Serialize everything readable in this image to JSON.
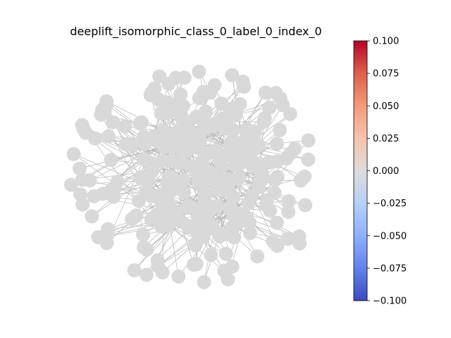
{
  "chart_data": {
    "type": "network",
    "title": "deeplift_isomorphic_class_0_label_0_index_0",
    "node_color": "#d9d9d9",
    "edge_color": "#bdbdbd",
    "colorbar": {
      "colormap": "coolwarm",
      "range": [
        -0.1,
        0.1
      ],
      "ticks": [
        0.1,
        0.075,
        0.05,
        0.025,
        0.0,
        -0.025,
        -0.05,
        -0.075,
        -0.1
      ],
      "tick_labels": [
        "0.100",
        "0.075",
        "0.050",
        "0.025",
        "0.000",
        "−0.025",
        "−0.050",
        "−0.075",
        "−0.100"
      ],
      "stops": [
        {
          "value": -0.1,
          "color": "#3b4cc0"
        },
        {
          "value": -0.075,
          "color": "#6282ea"
        },
        {
          "value": -0.05,
          "color": "#8db0fe"
        },
        {
          "value": -0.025,
          "color": "#b8d0f9"
        },
        {
          "value": 0.0,
          "color": "#dddcdc"
        },
        {
          "value": 0.025,
          "color": "#f5c4ac"
        },
        {
          "value": 0.05,
          "color": "#f49a7b"
        },
        {
          "value": 0.075,
          "color": "#de604d"
        },
        {
          "value": 0.1,
          "color": "#b40426"
        }
      ]
    }
  }
}
